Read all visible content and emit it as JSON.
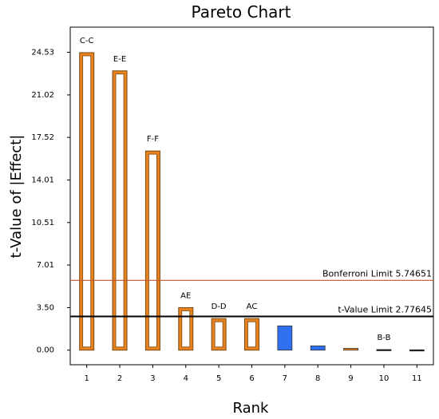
{
  "chart_data": {
    "type": "bar",
    "title": "Pareto Chart",
    "xlabel": "Rank",
    "ylabel": "t-Value of |Effect|",
    "categories": [
      "1",
      "2",
      "3",
      "4",
      "5",
      "6",
      "7",
      "8",
      "9",
      "10",
      "11"
    ],
    "bar_labels": [
      "C-C",
      "E-E",
      "F-F",
      "AE",
      "D-D",
      "AC",
      "",
      "",
      "",
      "B-B",
      ""
    ],
    "values": [
      24.5,
      23.0,
      16.4,
      3.5,
      2.6,
      2.6,
      2.0,
      0.35,
      0.15,
      0.05,
      0.03
    ],
    "bar_colors": [
      "#e8821e",
      "#e8821e",
      "#e8821e",
      "#e8821e",
      "#e8821e",
      "#e8821e",
      "#2f6ff0",
      "#2f6ff0",
      "#e8821e",
      "#000000",
      "#000000"
    ],
    "yticks": [
      "0.00",
      "3.50",
      "7.01",
      "10.51",
      "14.01",
      "17.52",
      "21.02",
      "24.53"
    ],
    "ytick_values": [
      0.0,
      3.5,
      7.01,
      10.51,
      14.01,
      17.52,
      21.02,
      24.53
    ],
    "ylim": [
      -1.2,
      26.6
    ],
    "limits": [
      {
        "label": "Bonferroni Limit 5.74651",
        "value": 5.74651,
        "color": "#c0572e"
      },
      {
        "label": "t-Value Limit 2.77645",
        "value": 2.77645,
        "color": "#000000"
      }
    ],
    "grid": false
  }
}
